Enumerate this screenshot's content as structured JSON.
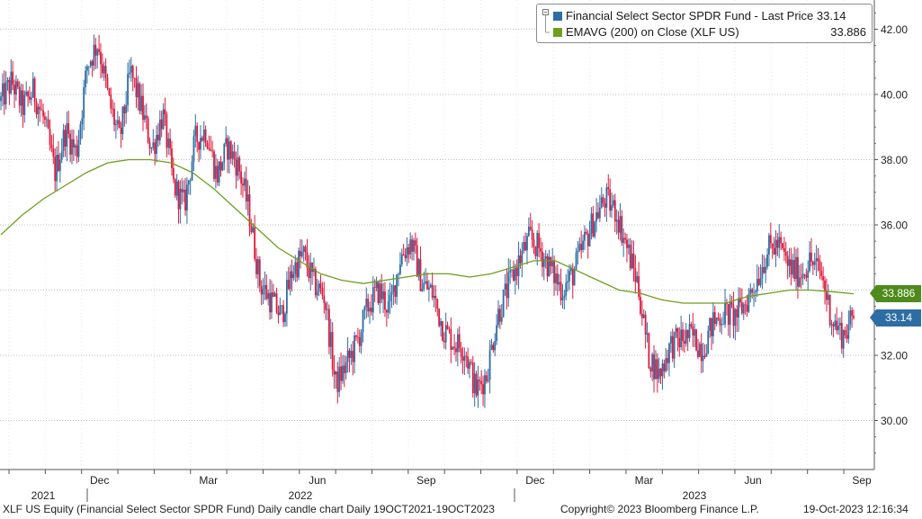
{
  "legend": {
    "series1_label": "Financial Select Sector SPDR Fund - Last Price 33.14",
    "series1_color": "#2e6da4",
    "series2_label": "EMAVG (200)  on Close (XLF US)",
    "series2_value": "33.886",
    "series2_color": "#6e9e1e"
  },
  "price_tags": {
    "ema": {
      "text": "33.886",
      "value": 33.886,
      "color": "#4e8a1c"
    },
    "last": {
      "text": "33.14",
      "value": 33.14,
      "color": "#2e6da4"
    }
  },
  "footer": {
    "left": "XLF US Equity (Financial Select Sector SPDR Fund) Daily candle chart  Daily 19OCT2021-19OCT2023",
    "copyright": "Copyright© 2023 Bloomberg Finance L.P.",
    "timestamp": "19-Oct-2023 12:16:34"
  },
  "chart_data": {
    "type": "candlestick",
    "title": "XLF US Equity (Financial Select Sector SPDR Fund) Daily candle chart",
    "period": "Daily 19OCT2021-19OCT2023",
    "ylim": [
      28.5,
      43.0
    ],
    "y_ticks": [
      30.0,
      32.0,
      34.0,
      36.0,
      38.0,
      40.0,
      42.0
    ],
    "y_tick_labels": [
      "30.00",
      "32.00",
      "34.00",
      "36.00",
      "38.00",
      "40.00",
      "42.00"
    ],
    "grid": true,
    "x_month_labels": [
      "Dec",
      "Mar",
      "Jun",
      "Sep",
      "Dec",
      "Mar",
      "Jun",
      "Sep"
    ],
    "x_month_index": [
      10,
      15,
      18,
      21,
      24,
      27,
      30,
      33
    ],
    "x_year_labels": [
      "2021",
      "2022",
      "2023"
    ],
    "x_months_start": "2021-10",
    "x_months_count": 25,
    "up_color": "#2e6da4",
    "down_color": "#e0193c",
    "series": [
      {
        "name": "Financial Select Sector SPDR Fund - Last Price",
        "last": 33.14,
        "close_approx": [
          39.8,
          40.4,
          39.6,
          40.1,
          39.2,
          37.6,
          38.9,
          38.2,
          40.9,
          41.6,
          39.8,
          38.6,
          40.7,
          39.6,
          38.3,
          39.4,
          37.2,
          36.6,
          38.6,
          38.9,
          37.5,
          38.4,
          37.8,
          36.4,
          34.2,
          33.7,
          33.2,
          34.6,
          35.1,
          34.2,
          33.8,
          31.1,
          31.7,
          32.4,
          33.5,
          34.0,
          33.4,
          35.0,
          35.5,
          34.2,
          33.9,
          32.8,
          32.4,
          32.2,
          30.9,
          31.4,
          33.2,
          34.1,
          34.9,
          35.6,
          35.2,
          34.6,
          34.0,
          34.5,
          35.4,
          36.2,
          36.8,
          36.4,
          35.3,
          34.2,
          32.0,
          31.4,
          32.3,
          32.5,
          32.6,
          32.2,
          33.0,
          33.3,
          33.2,
          33.6,
          34.3,
          35.2,
          35.4,
          34.7,
          34.5,
          34.9,
          34.5,
          33.1,
          32.6,
          33.14
        ],
        "ema200_approx": [
          35.7,
          36.3,
          36.8,
          37.2,
          37.6,
          37.9,
          38.0,
          38.0,
          37.9,
          37.6,
          37.1,
          36.5,
          35.9,
          35.3,
          34.9,
          34.5,
          34.3,
          34.2,
          34.3,
          34.4,
          34.5,
          34.5,
          34.4,
          34.5,
          34.7,
          34.9,
          34.9,
          34.6,
          34.3,
          34.0,
          33.9,
          33.7,
          33.6,
          33.6,
          33.6,
          33.8,
          33.9,
          34.0,
          34.0,
          33.95,
          33.886
        ]
      }
    ]
  }
}
